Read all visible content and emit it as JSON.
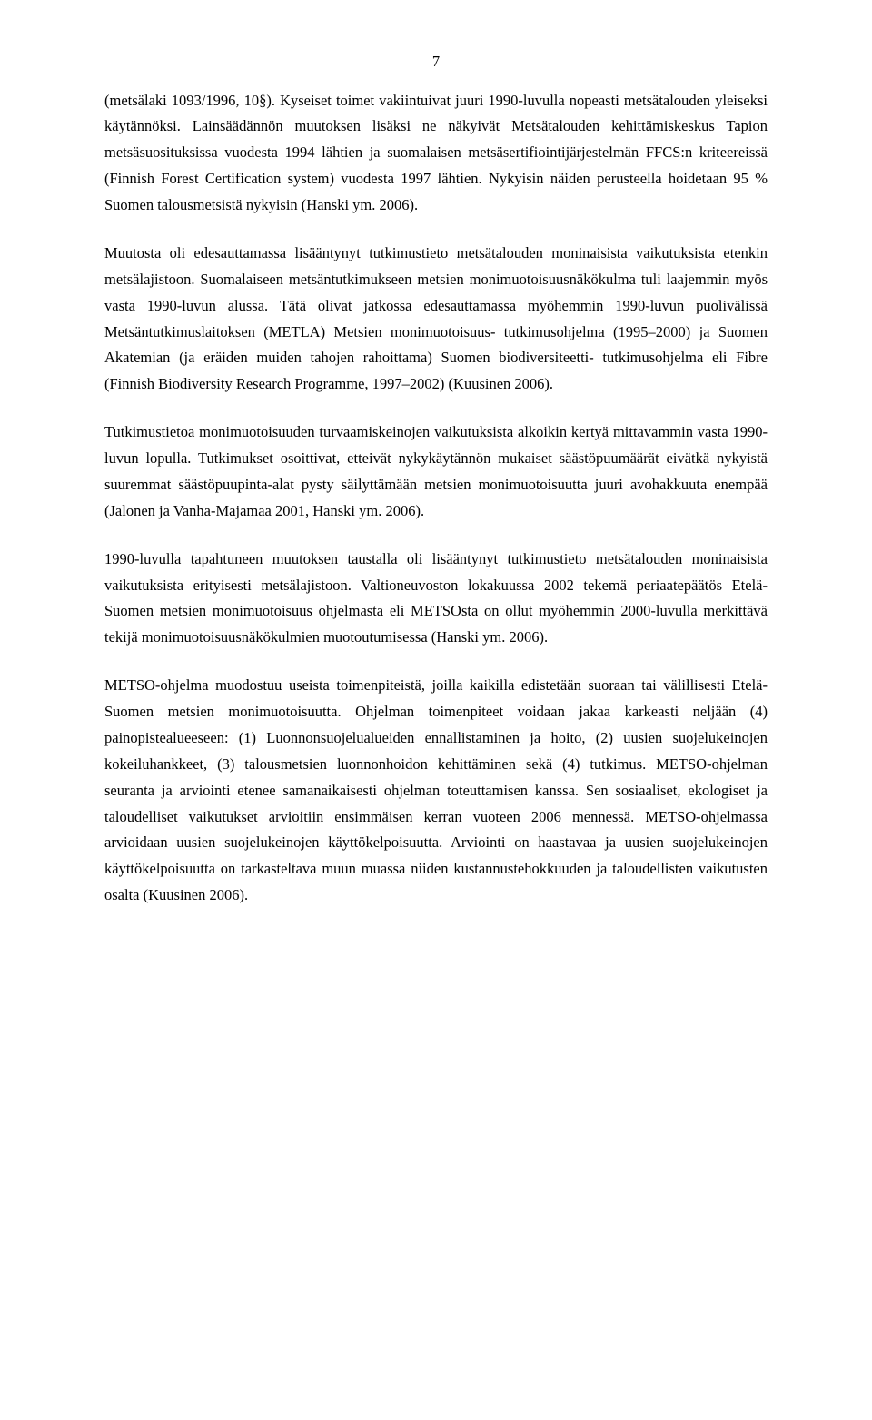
{
  "page_number": "7",
  "paragraphs": [
    "(metsälaki 1093/1996, 10§). Kyseiset toimet vakiintuivat juuri 1990-luvulla nopeasti metsätalouden yleiseksi käytännöksi. Lainsäädännön muutoksen lisäksi ne näkyivät Metsätalouden kehittämiskeskus Tapion metsäsuosituksissa vuodesta 1994 lähtien ja suomalaisen metsäsertifiointijärjestelmän FFCS:n kriteereissä (Finnish Forest Certification system) vuodesta 1997 lähtien. Nykyisin näiden perusteella hoidetaan 95 % Suomen talousmetsistä nykyisin (Hanski ym. 2006).",
    "Muutosta oli edesauttamassa lisääntynyt tutkimustieto metsätalouden moninaisista vaikutuksista etenkin metsälajistoon. Suomalaiseen metsäntutkimukseen metsien monimuotoisuusnäkökulma tuli laajemmin myös vasta 1990-luvun alussa. Tätä olivat jatkossa edesauttamassa myöhemmin 1990-luvun puolivälissä Metsäntutkimuslaitoksen (METLA) Metsien monimuotoisuus- tutkimusohjelma (1995–2000) ja Suomen Akatemian (ja eräiden muiden tahojen rahoittama) Suomen biodiversiteetti- tutkimusohjelma eli Fibre (Finnish Biodiversity Research Programme, 1997–2002) (Kuusinen 2006).",
    "Tutkimustietoa monimuotoisuuden turvaamiskeinojen vaikutuksista alkoikin kertyä mittavammin vasta 1990-luvun lopulla. Tutkimukset osoittivat, etteivät nykykäytännön mukaiset säästöpuumäärät eivätkä nykyistä suuremmat säästöpuupinta-alat pysty säilyttämään metsien monimuotoisuutta juuri avohakkuuta enempää (Jalonen ja Vanha-Majamaa 2001, Hanski ym. 2006).",
    "1990-luvulla tapahtuneen muutoksen taustalla oli lisääntynyt tutkimustieto metsätalouden moninaisista vaikutuksista erityisesti metsälajistoon. Valtioneuvoston lokakuussa 2002 tekemä periaatepäätös Etelä-Suomen metsien monimuotoisuus ohjelmasta eli METSOsta on ollut myöhemmin 2000-luvulla merkittävä tekijä monimuotoisuusnäkökulmien muotoutumisessa (Hanski ym. 2006).",
    "METSO-ohjelma muodostuu useista toimenpiteistä, joilla kaikilla edistetään suoraan tai välillisesti Etelä-Suomen metsien monimuotoisuutta. Ohjelman toimenpiteet voidaan jakaa karkeasti neljään (4) painopistealueeseen: (1) Luonnonsuojelualueiden ennallistaminen ja hoito, (2) uusien suojelukeinojen kokeiluhankkeet, (3) talousmetsien luonnonhoidon kehittäminen sekä (4) tutkimus. METSO-ohjelman seuranta ja arviointi etenee samanaikaisesti ohjelman toteuttamisen kanssa. Sen sosiaaliset, ekologiset ja taloudelliset vaikutukset arvioitiin ensimmäisen kerran vuoteen 2006 mennessä. METSO-ohjelmassa arvioidaan uusien suojelukeinojen käyttökelpoisuutta. Arviointi on haastavaa ja uusien suojelukeinojen käyttökelpoisuutta on tarkasteltava muun muassa niiden kustannustehokkuuden ja taloudellisten vaikutusten osalta (Kuusinen 2006)."
  ]
}
